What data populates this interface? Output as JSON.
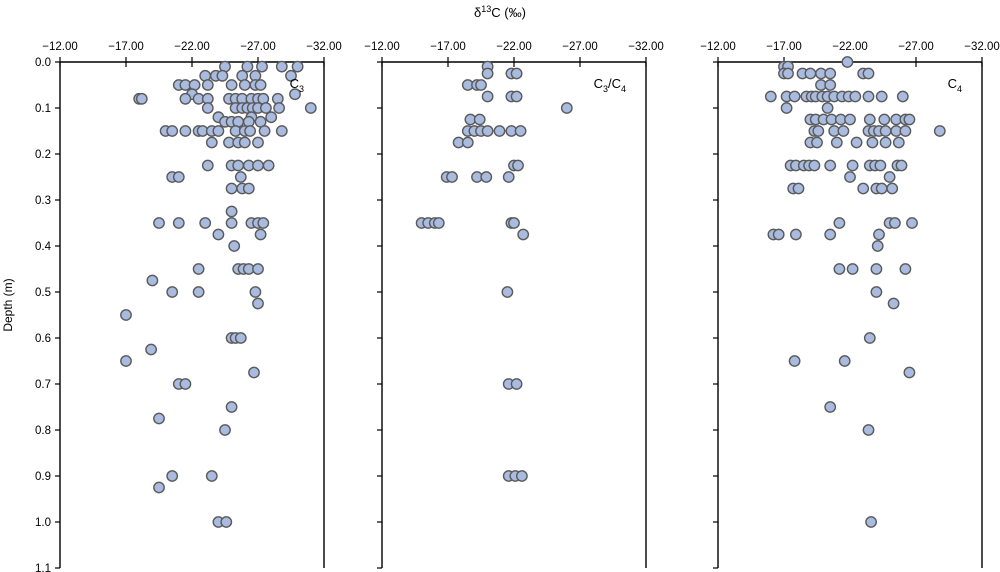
{
  "chart_data": {
    "type": "scatter",
    "title_main": "δ",
    "title_sup": "13",
    "title_rest": "C (‰)",
    "ylabel": "Depth (m)",
    "xlim": [
      -12,
      -32
    ],
    "ylim": [
      0,
      1.1
    ],
    "x_ticks": [
      "−12.00",
      "−17.00",
      "−22.00",
      "−27.00",
      "−32.00"
    ],
    "y_ticks": [
      "0.0",
      "0.1",
      "0.2",
      "0.3",
      "0.4",
      "0.5",
      "0.6",
      "0.7",
      "0.8",
      "0.9",
      "1.0",
      "1.1"
    ],
    "marker_color": "#a9bbdf",
    "marker_edge": "#5a5a5a",
    "panels": [
      {
        "label": "C3",
        "label_main": "C",
        "label_sub": "3",
        "label_sep": "",
        "label_main2": "",
        "label_sub2": "",
        "points": [
          [
            -24.5,
            0.01
          ],
          [
            -26.2,
            0.01
          ],
          [
            -27.3,
            0.01
          ],
          [
            -28.8,
            0.01
          ],
          [
            -30.0,
            0.01
          ],
          [
            -23.0,
            0.03
          ],
          [
            -23.8,
            0.03
          ],
          [
            -24.3,
            0.03
          ],
          [
            -25.8,
            0.03
          ],
          [
            -26.8,
            0.03
          ],
          [
            -29.5,
            0.03
          ],
          [
            -21.0,
            0.05
          ],
          [
            -21.5,
            0.05
          ],
          [
            -22.2,
            0.05
          ],
          [
            -23.2,
            0.05
          ],
          [
            -25.0,
            0.05
          ],
          [
            -26.0,
            0.05
          ],
          [
            -26.8,
            0.05
          ],
          [
            -27.2,
            0.05
          ],
          [
            -22.0,
            0.07
          ],
          [
            -29.8,
            0.07
          ],
          [
            -18.0,
            0.08
          ],
          [
            -18.2,
            0.08
          ],
          [
            -21.5,
            0.08
          ],
          [
            -22.5,
            0.08
          ],
          [
            -23.2,
            0.08
          ],
          [
            -24.8,
            0.08
          ],
          [
            -25.3,
            0.08
          ],
          [
            -25.8,
            0.08
          ],
          [
            -26.5,
            0.08
          ],
          [
            -27.0,
            0.08
          ],
          [
            -27.4,
            0.08
          ],
          [
            -28.5,
            0.08
          ],
          [
            -23.2,
            0.1
          ],
          [
            -25.3,
            0.1
          ],
          [
            -25.8,
            0.1
          ],
          [
            -26.2,
            0.1
          ],
          [
            -26.6,
            0.1
          ],
          [
            -27.0,
            0.1
          ],
          [
            -27.6,
            0.1
          ],
          [
            -28.6,
            0.1
          ],
          [
            -31.0,
            0.1
          ],
          [
            -24.0,
            0.12
          ],
          [
            -26.5,
            0.12
          ],
          [
            -28.0,
            0.12
          ],
          [
            -24.5,
            0.13
          ],
          [
            -25.0,
            0.13
          ],
          [
            -25.5,
            0.13
          ],
          [
            -26.3,
            0.13
          ],
          [
            -27.2,
            0.13
          ],
          [
            -20.0,
            0.15
          ],
          [
            -20.5,
            0.15
          ],
          [
            -21.5,
            0.15
          ],
          [
            -22.5,
            0.15
          ],
          [
            -22.8,
            0.15
          ],
          [
            -23.5,
            0.15
          ],
          [
            -24.0,
            0.15
          ],
          [
            -25.3,
            0.15
          ],
          [
            -26.0,
            0.15
          ],
          [
            -26.4,
            0.15
          ],
          [
            -27.5,
            0.15
          ],
          [
            -28.8,
            0.15
          ],
          [
            -23.5,
            0.175
          ],
          [
            -24.8,
            0.175
          ],
          [
            -25.5,
            0.175
          ],
          [
            -26.0,
            0.175
          ],
          [
            -27.0,
            0.175
          ],
          [
            -23.2,
            0.225
          ],
          [
            -25.0,
            0.225
          ],
          [
            -25.5,
            0.225
          ],
          [
            -26.3,
            0.225
          ],
          [
            -27.0,
            0.225
          ],
          [
            -27.8,
            0.225
          ],
          [
            -20.5,
            0.25
          ],
          [
            -21.0,
            0.25
          ],
          [
            -25.7,
            0.25
          ],
          [
            -25.0,
            0.275
          ],
          [
            -25.8,
            0.275
          ],
          [
            -26.3,
            0.275
          ],
          [
            -25.0,
            0.325
          ],
          [
            -19.5,
            0.35
          ],
          [
            -21.0,
            0.35
          ],
          [
            -23.0,
            0.35
          ],
          [
            -25.0,
            0.35
          ],
          [
            -26.5,
            0.35
          ],
          [
            -27.0,
            0.35
          ],
          [
            -27.4,
            0.35
          ],
          [
            -24.0,
            0.375
          ],
          [
            -27.2,
            0.375
          ],
          [
            -25.2,
            0.4
          ],
          [
            -22.5,
            0.45
          ],
          [
            -25.5,
            0.45
          ],
          [
            -25.9,
            0.45
          ],
          [
            -26.3,
            0.45
          ],
          [
            -27.0,
            0.45
          ],
          [
            -19.0,
            0.475
          ],
          [
            -20.5,
            0.5
          ],
          [
            -22.5,
            0.5
          ],
          [
            -26.8,
            0.5
          ],
          [
            -27.0,
            0.525
          ],
          [
            -17.0,
            0.55
          ],
          [
            -25.0,
            0.6
          ],
          [
            -25.3,
            0.6
          ],
          [
            -25.7,
            0.6
          ],
          [
            -18.9,
            0.625
          ],
          [
            -17.0,
            0.65
          ],
          [
            -26.7,
            0.675
          ],
          [
            -21.0,
            0.7
          ],
          [
            -21.5,
            0.7
          ],
          [
            -25.0,
            0.75
          ],
          [
            -19.5,
            0.775
          ],
          [
            -24.5,
            0.8
          ],
          [
            -20.5,
            0.9
          ],
          [
            -23.5,
            0.9
          ],
          [
            -19.5,
            0.925
          ],
          [
            -24.0,
            1.0
          ],
          [
            -24.6,
            1.0
          ]
        ]
      },
      {
        "label": "C3/C4",
        "label_main": "C",
        "label_sub": "3",
        "label_sep": "/C",
        "label_main2": "",
        "label_sub2": "4",
        "points": [
          [
            -20.0,
            0.01
          ],
          [
            -20.0,
            0.025
          ],
          [
            -21.8,
            0.025
          ],
          [
            -22.2,
            0.025
          ],
          [
            -18.5,
            0.05
          ],
          [
            -19.2,
            0.05
          ],
          [
            -19.5,
            0.05
          ],
          [
            -20.0,
            0.075
          ],
          [
            -21.8,
            0.075
          ],
          [
            -22.2,
            0.075
          ],
          [
            -26.0,
            0.1
          ],
          [
            -18.7,
            0.125
          ],
          [
            -19.4,
            0.125
          ],
          [
            -18.5,
            0.15
          ],
          [
            -19.0,
            0.15
          ],
          [
            -19.5,
            0.15
          ],
          [
            -20.0,
            0.15
          ],
          [
            -20.9,
            0.15
          ],
          [
            -21.8,
            0.15
          ],
          [
            -22.5,
            0.15
          ],
          [
            -17.8,
            0.175
          ],
          [
            -18.5,
            0.175
          ],
          [
            -22.0,
            0.225
          ],
          [
            -22.3,
            0.225
          ],
          [
            -16.9,
            0.25
          ],
          [
            -17.3,
            0.25
          ],
          [
            -19.2,
            0.25
          ],
          [
            -19.9,
            0.25
          ],
          [
            -21.6,
            0.25
          ],
          [
            -15.0,
            0.35
          ],
          [
            -15.5,
            0.35
          ],
          [
            -16.0,
            0.35
          ],
          [
            -16.3,
            0.35
          ],
          [
            -21.8,
            0.35
          ],
          [
            -22.0,
            0.35
          ],
          [
            -22.7,
            0.375
          ],
          [
            -21.5,
            0.5
          ],
          [
            -21.6,
            0.7
          ],
          [
            -22.2,
            0.7
          ],
          [
            -21.6,
            0.9
          ],
          [
            -22.1,
            0.9
          ],
          [
            -22.6,
            0.9
          ]
        ]
      },
      {
        "label": "C4",
        "label_main": "C",
        "label_sub": "4",
        "label_sep": "",
        "label_main2": "",
        "label_sub2": "",
        "points": [
          [
            -21.8,
            0.0
          ],
          [
            -17.0,
            0.01
          ],
          [
            -17.3,
            0.01
          ],
          [
            -17.0,
            0.025
          ],
          [
            -17.3,
            0.025
          ],
          [
            -18.4,
            0.025
          ],
          [
            -19.0,
            0.025
          ],
          [
            -19.8,
            0.025
          ],
          [
            -20.5,
            0.025
          ],
          [
            -23.0,
            0.025
          ],
          [
            -23.4,
            0.025
          ],
          [
            -19.8,
            0.05
          ],
          [
            -20.5,
            0.05
          ],
          [
            -16.0,
            0.075
          ],
          [
            -17.2,
            0.075
          ],
          [
            -17.8,
            0.075
          ],
          [
            -18.7,
            0.075
          ],
          [
            -19.1,
            0.075
          ],
          [
            -19.4,
            0.075
          ],
          [
            -19.9,
            0.075
          ],
          [
            -20.3,
            0.075
          ],
          [
            -20.8,
            0.075
          ],
          [
            -21.4,
            0.075
          ],
          [
            -21.9,
            0.075
          ],
          [
            -22.4,
            0.075
          ],
          [
            -23.4,
            0.075
          ],
          [
            -24.4,
            0.075
          ],
          [
            -26.0,
            0.075
          ],
          [
            -17.2,
            0.1
          ],
          [
            -20.3,
            0.1
          ],
          [
            -19.0,
            0.125
          ],
          [
            -19.4,
            0.125
          ],
          [
            -20.0,
            0.125
          ],
          [
            -20.6,
            0.125
          ],
          [
            -21.3,
            0.125
          ],
          [
            -22.0,
            0.125
          ],
          [
            -23.5,
            0.125
          ],
          [
            -24.6,
            0.125
          ],
          [
            -25.5,
            0.125
          ],
          [
            -26.2,
            0.125
          ],
          [
            -26.5,
            0.125
          ],
          [
            -19.3,
            0.15
          ],
          [
            -19.6,
            0.15
          ],
          [
            -20.8,
            0.15
          ],
          [
            -21.5,
            0.15
          ],
          [
            -23.4,
            0.15
          ],
          [
            -23.8,
            0.15
          ],
          [
            -24.2,
            0.15
          ],
          [
            -24.7,
            0.15
          ],
          [
            -25.5,
            0.15
          ],
          [
            -26.2,
            0.15
          ],
          [
            -28.8,
            0.15
          ],
          [
            -19.0,
            0.175
          ],
          [
            -19.5,
            0.175
          ],
          [
            -21.0,
            0.175
          ],
          [
            -22.5,
            0.175
          ],
          [
            -23.7,
            0.175
          ],
          [
            -24.7,
            0.175
          ],
          [
            -25.7,
            0.175
          ],
          [
            -17.5,
            0.225
          ],
          [
            -17.9,
            0.225
          ],
          [
            -18.5,
            0.225
          ],
          [
            -18.9,
            0.225
          ],
          [
            -19.3,
            0.225
          ],
          [
            -20.5,
            0.225
          ],
          [
            -22.2,
            0.225
          ],
          [
            -23.5,
            0.225
          ],
          [
            -23.9,
            0.225
          ],
          [
            -24.3,
            0.225
          ],
          [
            -25.6,
            0.225
          ],
          [
            -25.9,
            0.225
          ],
          [
            -22.0,
            0.25
          ],
          [
            -25.0,
            0.25
          ],
          [
            -17.7,
            0.275
          ],
          [
            -18.1,
            0.275
          ],
          [
            -23.0,
            0.275
          ],
          [
            -24.0,
            0.275
          ],
          [
            -24.4,
            0.275
          ],
          [
            -25.2,
            0.275
          ],
          [
            -21.2,
            0.35
          ],
          [
            -25.0,
            0.35
          ],
          [
            -25.4,
            0.35
          ],
          [
            -26.7,
            0.35
          ],
          [
            -16.2,
            0.375
          ],
          [
            -16.6,
            0.375
          ],
          [
            -17.9,
            0.375
          ],
          [
            -20.5,
            0.375
          ],
          [
            -24.2,
            0.375
          ],
          [
            -24.1,
            0.4
          ],
          [
            -21.2,
            0.45
          ],
          [
            -22.2,
            0.45
          ],
          [
            -24.0,
            0.45
          ],
          [
            -26.2,
            0.45
          ],
          [
            -24.0,
            0.5
          ],
          [
            -25.3,
            0.525
          ],
          [
            -23.5,
            0.6
          ],
          [
            -17.8,
            0.65
          ],
          [
            -21.6,
            0.65
          ],
          [
            -26.5,
            0.675
          ],
          [
            -20.5,
            0.75
          ],
          [
            -23.4,
            0.8
          ],
          [
            -23.6,
            1.0
          ]
        ]
      }
    ]
  }
}
